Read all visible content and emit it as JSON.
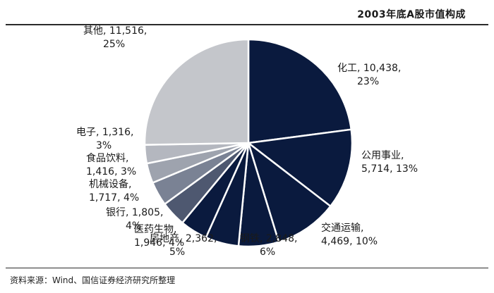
{
  "title": "2003年底A股市值构成",
  "source": "资料来源：Wind、国信证券经济研究所整理",
  "colors": {
    "dark": "#0a1a3e",
    "mid": "#4e5870",
    "light": "#bcbec3",
    "other": "#c4c6cb"
  },
  "chart_data": {
    "type": "pie",
    "start_angle_deg": 0,
    "direction": "clockwise",
    "slices": [
      {
        "label": "化工",
        "value": 10438,
        "percent": "23%",
        "line1": "化工, 10,438,",
        "line2": "23%",
        "color": "#0a1a3e"
      },
      {
        "label": "公用事业",
        "value": 5714,
        "percent": "13%",
        "line1": "公用事业,",
        "line2": "5,714, 13%",
        "color": "#0a1a3e"
      },
      {
        "label": "交通运输",
        "value": 4469,
        "percent": "10%",
        "line1": "交通运输,",
        "line2": "4,469, 10%",
        "color": "#0a1a3e"
      },
      {
        "label": "钢铁",
        "value": 2848,
        "percent": "6%",
        "line1": "钢铁, 2,848,",
        "line2": "6%",
        "color": "#0a1a3e"
      },
      {
        "label": "房地产",
        "value": 2362,
        "percent": "5%",
        "line1": "房地产, 2,362,",
        "line2": "5%",
        "color": "#0a1a3e"
      },
      {
        "label": "医药生物",
        "value": 1946,
        "percent": "4%",
        "line1": "医药生物,",
        "line2": "1,946, 4%",
        "color": "#0a1a3e"
      },
      {
        "label": "银行",
        "value": 1805,
        "percent": "4%",
        "line1": "银行, 1,805,",
        "line2": "4%",
        "color": "#4e5870"
      },
      {
        "label": "机械设备",
        "value": 1717,
        "percent": "4%",
        "line1": "机械设备,",
        "line2": "1,717, 4%",
        "color": "#7a8294"
      },
      {
        "label": "食品饮料",
        "value": 1416,
        "percent": "3%",
        "line1": "食品饮料,",
        "line2": "1,416, 3%",
        "color": "#9ea3ae"
      },
      {
        "label": "电子",
        "value": 1316,
        "percent": "3%",
        "line1": "电子, 1,316,",
        "line2": "3%",
        "color": "#b4b7bf"
      },
      {
        "label": "其他",
        "value": 11516,
        "percent": "25%",
        "line1": "其他, 11,516,",
        "line2": "25%",
        "color": "#c4c6cb"
      }
    ]
  }
}
